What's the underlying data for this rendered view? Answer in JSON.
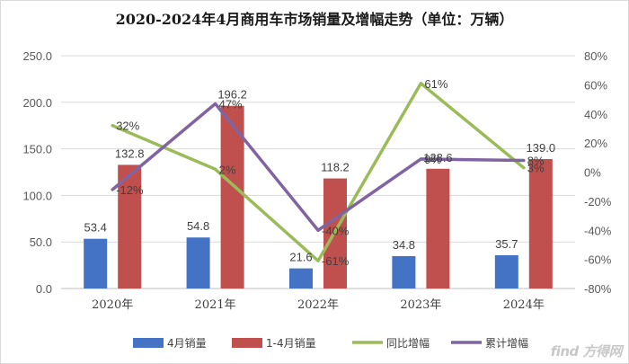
{
  "chart_data": {
    "type": "bar",
    "title": "2020-2024年4月商用车市场销量及增幅走势（单位：万辆）",
    "categories": [
      "2020年",
      "2021年",
      "2022年",
      "2023年",
      "2024年"
    ],
    "series": [
      {
        "name": "4月销量",
        "kind": "bar",
        "axis": "left",
        "color": "#4472c4",
        "values": [
          53.4,
          54.8,
          21.6,
          34.8,
          35.7
        ],
        "labels": [
          "53.4",
          "54.8",
          "21.6",
          "34.8",
          "35.7"
        ]
      },
      {
        "name": "1-4月销量",
        "kind": "bar",
        "axis": "left",
        "color": "#c0504d",
        "values": [
          132.8,
          196.2,
          118.2,
          128.6,
          139.0
        ],
        "labels": [
          "132.8",
          "196.2",
          "118.2",
          "128.6",
          "139.0"
        ]
      },
      {
        "name": "同比增幅",
        "kind": "line",
        "axis": "right",
        "color": "#9bbb59",
        "values": [
          32,
          2,
          -61,
          61,
          3
        ],
        "labels": [
          "32%",
          "2%",
          "-61%",
          "61%",
          "3%"
        ]
      },
      {
        "name": "累计增幅",
        "kind": "line",
        "axis": "right",
        "color": "#8064a2",
        "values": [
          -12,
          47,
          -40,
          9,
          8
        ],
        "labels": [
          "-12%",
          "47%",
          "-40%",
          "9%",
          "8%"
        ]
      }
    ],
    "y_left": {
      "min": 0,
      "max": 250,
      "ticks": [
        "0.0",
        "50.0",
        "100.0",
        "150.0",
        "200.0",
        "250.0"
      ]
    },
    "y_right": {
      "min": -80,
      "max": 80,
      "ticks": [
        "-80%",
        "-60%",
        "-40%",
        "-20%",
        "0%",
        "20%",
        "40%",
        "60%",
        "80%"
      ]
    },
    "grid": true,
    "legend_position": "bottom"
  },
  "watermark": "find 方得网"
}
